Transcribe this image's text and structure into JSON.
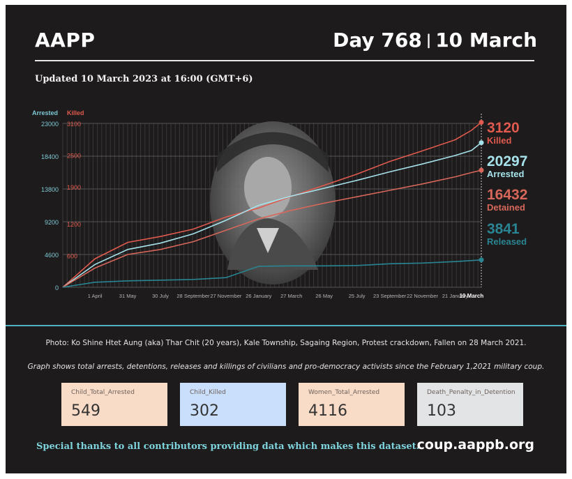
{
  "header": {
    "brand": "AAPP",
    "day_label": "Day 768",
    "date_label": "10 March",
    "updated": "Updated 10 March 2023 at 16:00 (GMT+6)"
  },
  "chart_data": {
    "type": "line",
    "title": "",
    "left_axis_label": "Arrested",
    "right_axis_label": "Killed",
    "arrested_ticks": [
      "23000",
      "18400",
      "13800",
      "9200",
      "4600",
      "0"
    ],
    "killed_ticks": [
      "3100",
      "2500",
      "1900",
      "1200",
      "600"
    ],
    "arrested_ylim": [
      0,
      23000
    ],
    "killed_ylim": [
      0,
      3100
    ],
    "x_tick_labels": [
      "1 April",
      "31 May",
      "30 July",
      "28 September",
      "27 November",
      "26 January",
      "27 March",
      "26 May",
      "25 July",
      "23 September",
      "22 November",
      "21 January",
      "10 March"
    ],
    "x": [
      "2021-02-01",
      "2021-04-01",
      "2021-05-31",
      "2021-07-30",
      "2021-09-28",
      "2021-11-27",
      "2022-01-26",
      "2022-03-27",
      "2022-05-26",
      "2022-07-25",
      "2022-09-23",
      "2022-11-22",
      "2023-01-21",
      "2023-02-20",
      "2023-03-10"
    ],
    "series": [
      {
        "name": "Killed",
        "color": "#e05a4e",
        "axis": "killed",
        "values": [
          0,
          540,
          850,
          960,
          1100,
          1330,
          1500,
          1720,
          1930,
          2140,
          2380,
          2580,
          2790,
          2970,
          3120
        ]
      },
      {
        "name": "Arrested",
        "color": "#a6e2ea",
        "axis": "arrested",
        "values": [
          0,
          3200,
          5300,
          6200,
          7500,
          9400,
          11500,
          12800,
          13900,
          15000,
          16200,
          17300,
          18500,
          19200,
          20297
        ]
      },
      {
        "name": "Detained",
        "color": "#d7675a",
        "axis": "arrested",
        "values": [
          0,
          2700,
          4600,
          5300,
          6400,
          8000,
          9600,
          10800,
          11800,
          12700,
          13600,
          14500,
          15500,
          16100,
          16432
        ]
      },
      {
        "name": "Released",
        "color": "#2a8592",
        "axis": "arrested",
        "values": [
          0,
          700,
          900,
          1000,
          1100,
          1350,
          2950,
          3000,
          3000,
          3050,
          3300,
          3400,
          3600,
          3750,
          3841
        ]
      }
    ],
    "end_labels": [
      {
        "value": "3120",
        "label": "Killed",
        "color": "#e05a4e"
      },
      {
        "value": "20297",
        "label": "Arrested",
        "color": "#a6e2ea"
      },
      {
        "value": "16432",
        "label": "Detained",
        "color": "#d7675a"
      },
      {
        "value": "3841",
        "label": "Released",
        "color": "#2a8592"
      }
    ],
    "grid": true
  },
  "photo": {
    "description_icon": "portrait-photo"
  },
  "caption": "Photo: Ko Shine Htet Aung (aka) Thar Chit (20 years), Kale Township, Sagaing Region, Protest crackdown, Fallen on 28 March 2021.",
  "note": "Graph shows total arrests, detentions, releases and killings of civilians and pro-democracy activists since the February 1,2021 military coup.",
  "stats": [
    {
      "label": "Child_Total_Arrested",
      "value": "549",
      "bg": "#f9dcc7"
    },
    {
      "label": "Child_Killed",
      "value": "302",
      "bg": "#c9dffb"
    },
    {
      "label": "Women_Total_Arrested",
      "value": "4116",
      "bg": "#f9dcc7"
    },
    {
      "label": "Death_Penalty_in_Detention",
      "value": "103",
      "bg": "#e3e4e6"
    }
  ],
  "footer": {
    "thanks": "Special thanks to all contributors providing data which makes this dataset.",
    "site": "coup.aappb.org"
  }
}
